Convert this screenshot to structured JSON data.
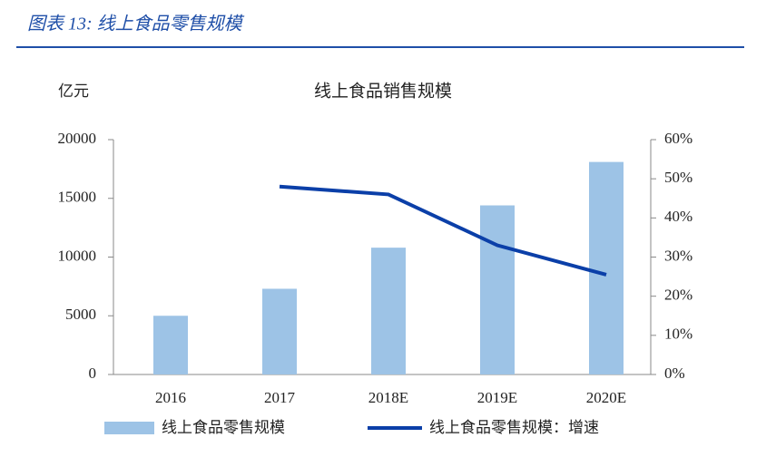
{
  "header": {
    "title": "图表 13:  线上食品零售规模"
  },
  "chart_data": {
    "type": "bar",
    "title": "线上食品销售规模",
    "y_label": "亿元",
    "categories": [
      "2016",
      "2017",
      "2018E",
      "2019E",
      "2020E"
    ],
    "series": [
      {
        "name": "线上食品零售规模",
        "type": "bar",
        "color": "#9dc3e6",
        "values": [
          5000,
          7300,
          10800,
          14400,
          18100
        ]
      },
      {
        "name": "线上食品零售规模：增速",
        "type": "line",
        "axis": "y2",
        "color": "#0b3fa8",
        "values": [
          null,
          48,
          46,
          33,
          25.5
        ]
      }
    ],
    "ylim": [
      0,
      20000
    ],
    "yticks": [
      0,
      5000,
      10000,
      15000,
      20000
    ],
    "y2lim": [
      0,
      60
    ],
    "y2ticks": [
      {
        "value": 0,
        "label": "0%"
      },
      {
        "value": 10,
        "label": "10%"
      },
      {
        "value": 20,
        "label": "20%"
      },
      {
        "value": 30,
        "label": "30%"
      },
      {
        "value": 40,
        "label": "40%"
      },
      {
        "value": 50,
        "label": "50%"
      },
      {
        "value": 60,
        "label": "60%"
      }
    ],
    "grid": false,
    "legend": "bottom"
  }
}
